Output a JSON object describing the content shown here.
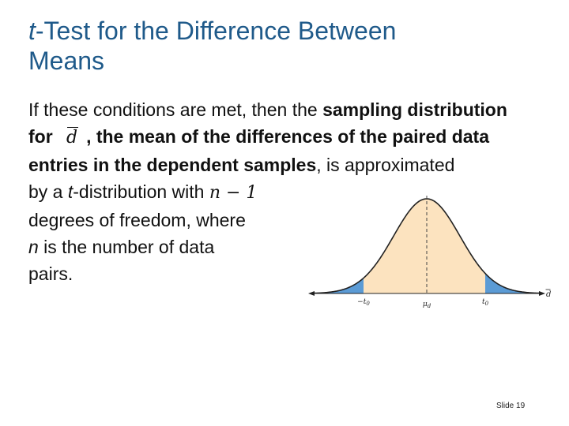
{
  "title": {
    "italic_part": "t",
    "rest_line1": "-Test for the Difference Between",
    "line2": "Means"
  },
  "body": {
    "seg1": "If these conditions are met, then the ",
    "seg2_bold": "sampling distribution for ",
    "dbar_symbol": "d",
    "seg3_bold": ", the mean of the differences of the paired data entries in the dependent samples",
    "seg4": ", is approximated",
    "seg5": "by a ",
    "seg5_ital": "t",
    "seg6": "-distribution with ",
    "df_expr": "n − 1",
    "seg7": "degrees of freedom, where",
    "seg8_ital": "n",
    "seg8": " is the number of data",
    "seg9": "pairs."
  },
  "figure": {
    "axis_label": "d",
    "left_label": "−t",
    "left_sub": "0",
    "center_label": "μ",
    "center_sub": "d",
    "right_label": "t",
    "right_sub": "0",
    "fill_color": "#fce3bf",
    "tail_color": "#5b9bd5",
    "curve_color": "#222222"
  },
  "slide_number": "Slide 19"
}
